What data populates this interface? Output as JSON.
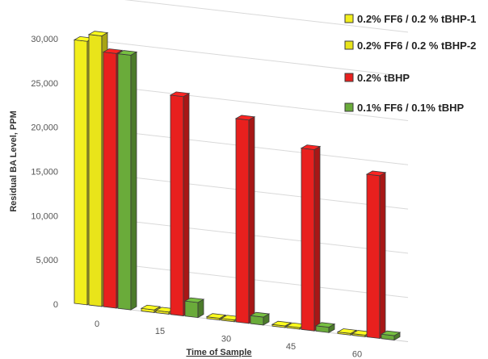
{
  "chart_data": {
    "type": "bar",
    "title": "",
    "xlabel": "Time of Sample",
    "ylabel": "Residual BA Level, PPM",
    "categories": [
      "0",
      "15",
      "30",
      "45",
      "60"
    ],
    "ylim": [
      0,
      35000
    ],
    "yticks": [
      "0",
      "5,000",
      "10,000",
      "15,000",
      "20,000",
      "25,000",
      "30,000",
      "35,000"
    ],
    "grid": true,
    "legend_position": "right",
    "series": [
      {
        "name": "0.2% FF6 / 0.2 % tBHP-1",
        "color": "#f2ee1c",
        "values": [
          29800,
          300,
          200,
          150,
          100
        ]
      },
      {
        "name": "0.2% FF6 / 0.2 % tBHP-2",
        "color": "#e9e41a",
        "values": [
          30600,
          250,
          200,
          150,
          100
        ]
      },
      {
        "name": "0.2% tBHP",
        "color": "#e8201e",
        "values": [
          28800,
          24800,
          23000,
          20500,
          18400
        ]
      },
      {
        "name": "0.1% FF6 / 0.1% tBHP",
        "color": "#6aab3a",
        "values": [
          28800,
          1700,
          900,
          600,
          500
        ]
      }
    ]
  }
}
